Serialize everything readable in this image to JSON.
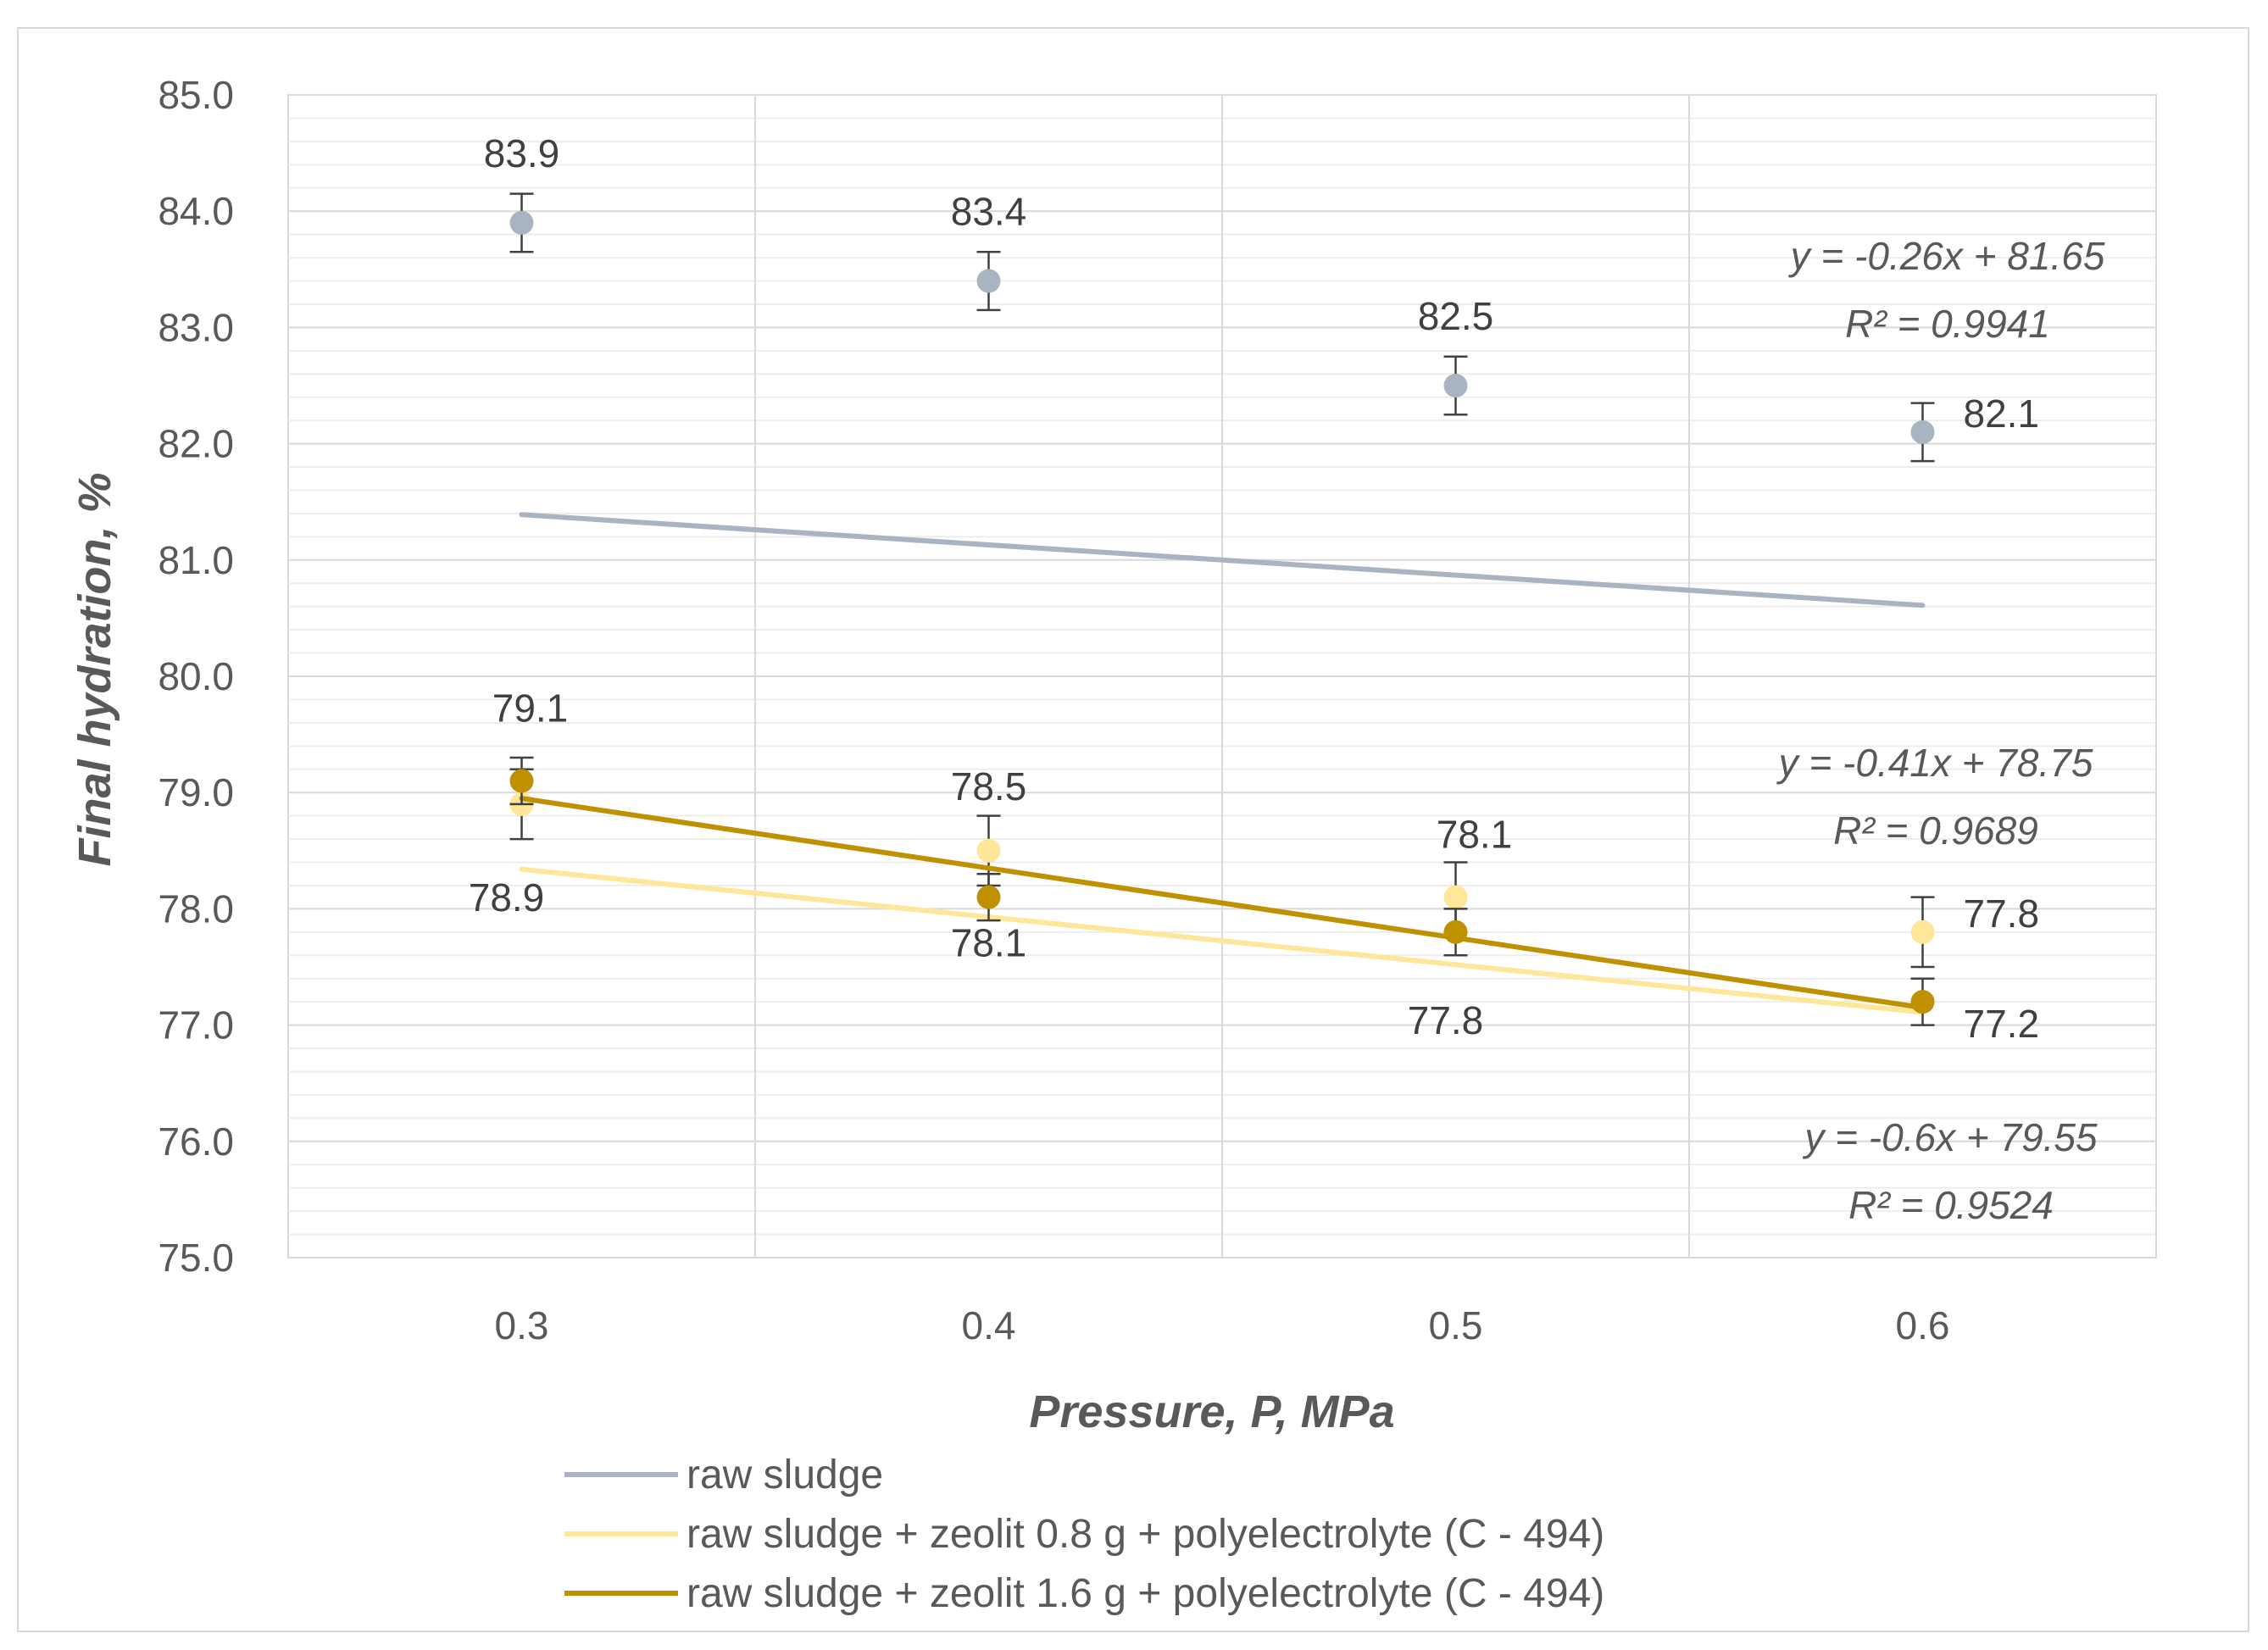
{
  "chart_data": {
    "type": "line",
    "title": "",
    "xlabel": "Pressure, P,  MPa",
    "ylabel": "Final hydration, %",
    "x": [
      0.3,
      0.4,
      0.5,
      0.6
    ],
    "x_tick_labels": [
      "0.3",
      "0.4",
      "0.5",
      "0.6"
    ],
    "xlim": [
      0.25,
      0.65
    ],
    "ylim": [
      75.0,
      85.0
    ],
    "y_ticks": [
      75.0,
      76.0,
      77.0,
      78.0,
      79.0,
      80.0,
      81.0,
      82.0,
      83.0,
      84.0,
      85.0
    ],
    "y_tick_labels": [
      "75.0",
      "76.0",
      "77.0",
      "78.0",
      "79.0",
      "80.0",
      "81.0",
      "82.0",
      "83.0",
      "84.0",
      "85.0"
    ],
    "grid": true,
    "legend_position": "bottom",
    "series": [
      {
        "name": "raw sludge",
        "color": "#a9b4c2",
        "values": [
          83.9,
          83.4,
          82.5,
          82.1
        ],
        "error": [
          0.25,
          0.25,
          0.25,
          0.25
        ],
        "data_labels": [
          "83.9",
          "83.4",
          "82.5",
          "82.1"
        ],
        "trendline": {
          "slope": -0.26,
          "intercept": 81.65,
          "equation": "y = -0.26x + 81.65",
          "r2": "R² = 0.9941"
        }
      },
      {
        "name": "raw sludge + zeolit 0.8 g + polyelectrolyte (C - 494)",
        "color": "#ffe699",
        "values": [
          78.9,
          78.5,
          78.1,
          77.8
        ],
        "error": [
          0.3,
          0.3,
          0.3,
          0.3
        ],
        "data_labels": [
          "78.9",
          "78.5",
          "78.1",
          "77.8"
        ],
        "trendline": {
          "slope": -0.41,
          "intercept": 78.75,
          "equation": "y = -0.41x + 78.75",
          "r2": "R² = 0.9689"
        }
      },
      {
        "name": "raw sludge + zeolit 1.6 g + polyelectrolyte (C - 494)",
        "color": "#bf9000",
        "values": [
          79.1,
          78.1,
          77.8,
          77.2
        ],
        "error": [
          0.2,
          0.2,
          0.2,
          0.2
        ],
        "data_labels": [
          "79.1",
          "78.1",
          "77.8",
          "77.2"
        ],
        "trendline": {
          "slope": -0.6,
          "intercept": 79.55,
          "equation": "y = -0.6x + 79.55",
          "r2": "R² = 0.9524"
        }
      }
    ]
  }
}
